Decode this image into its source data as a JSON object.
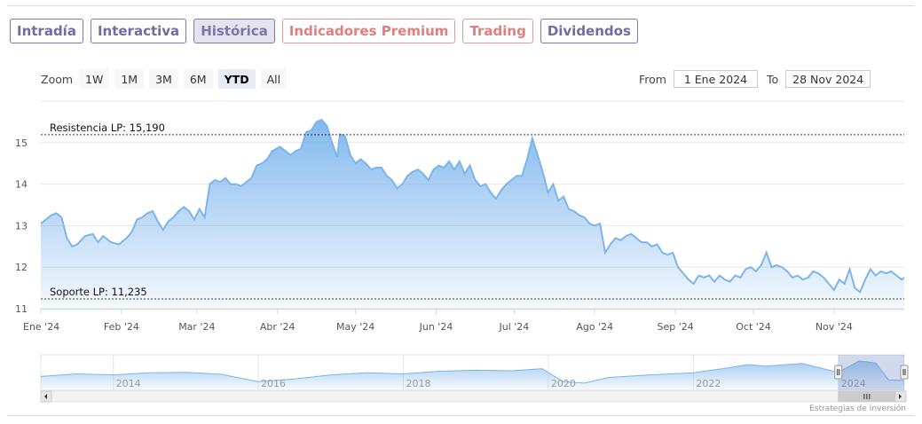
{
  "tabs": [
    {
      "label": "Intradía",
      "style": "normal"
    },
    {
      "label": "Interactiva",
      "style": "normal"
    },
    {
      "label": "Histórica",
      "style": "active"
    },
    {
      "label": "Indicadores Premium",
      "style": "premium"
    },
    {
      "label": "Trading",
      "style": "premium"
    },
    {
      "label": "Dividendos",
      "style": "normal"
    }
  ],
  "zoom": {
    "label": "Zoom",
    "buttons": [
      "1W",
      "1M",
      "3M",
      "6M",
      "YTD",
      "All"
    ],
    "selected": "YTD"
  },
  "range": {
    "from_label": "From",
    "from_value": "1 Ene 2024",
    "to_label": "To",
    "to_value": "28 Nov 2024"
  },
  "credit": "Estrategias de Inversión",
  "colors": {
    "line": "#7cb5ec",
    "area_top": "#7cb5ec",
    "area_bottom": "#ffffff",
    "tab_border": "#7b79ad",
    "premium": "#e07f7f"
  },
  "chart_data": {
    "type": "area",
    "title": "",
    "xlabel": "",
    "ylabel": "",
    "ylim": [
      11,
      16
    ],
    "yticks": [
      11,
      12,
      13,
      14,
      15
    ],
    "grid": true,
    "x_range": [
      "2024-01-01",
      "2024-11-28"
    ],
    "x_ticks": [
      {
        "date": "2024-01-01",
        "label": "Ene '24"
      },
      {
        "date": "2024-02-01",
        "label": "Feb '24"
      },
      {
        "date": "2024-03-01",
        "label": "Mar '24"
      },
      {
        "date": "2024-04-01",
        "label": "Abr '24"
      },
      {
        "date": "2024-05-01",
        "label": "May '24"
      },
      {
        "date": "2024-06-01",
        "label": "Jun '24"
      },
      {
        "date": "2024-07-01",
        "label": "Jul '24"
      },
      {
        "date": "2024-08-01",
        "label": "Ago '24"
      },
      {
        "date": "2024-09-01",
        "label": "Sep '24"
      },
      {
        "date": "2024-10-01",
        "label": "Oct '24"
      },
      {
        "date": "2024-11-01",
        "label": "Nov '24"
      }
    ],
    "annotations": [
      {
        "label": "Resistencia LP: 15,190",
        "y": 15.19
      },
      {
        "label": "Soporte LP: 11,235",
        "y": 11.235
      }
    ],
    "series": [
      {
        "points": [
          [
            "2024-01-01",
            13.05
          ],
          [
            "2024-01-03",
            13.15
          ],
          [
            "2024-01-05",
            13.25
          ],
          [
            "2024-01-07",
            13.3
          ],
          [
            "2024-01-09",
            13.2
          ],
          [
            "2024-01-11",
            12.7
          ],
          [
            "2024-01-13",
            12.5
          ],
          [
            "2024-01-15",
            12.55
          ],
          [
            "2024-01-18",
            12.75
          ],
          [
            "2024-01-21",
            12.8
          ],
          [
            "2024-01-23",
            12.6
          ],
          [
            "2024-01-25",
            12.75
          ],
          [
            "2024-01-28",
            12.6
          ],
          [
            "2024-01-31",
            12.55
          ],
          [
            "2024-02-03",
            12.7
          ],
          [
            "2024-02-05",
            12.85
          ],
          [
            "2024-02-07",
            13.15
          ],
          [
            "2024-02-09",
            13.2
          ],
          [
            "2024-02-11",
            13.3
          ],
          [
            "2024-02-13",
            13.35
          ],
          [
            "2024-02-15",
            13.1
          ],
          [
            "2024-02-17",
            12.9
          ],
          [
            "2024-02-19",
            13.1
          ],
          [
            "2024-02-21",
            13.2
          ],
          [
            "2024-02-23",
            13.35
          ],
          [
            "2024-02-25",
            13.45
          ],
          [
            "2024-02-27",
            13.35
          ],
          [
            "2024-02-29",
            13.15
          ],
          [
            "2024-03-02",
            13.4
          ],
          [
            "2024-03-04",
            13.2
          ],
          [
            "2024-03-06",
            14.0
          ],
          [
            "2024-03-08",
            14.1
          ],
          [
            "2024-03-10",
            14.05
          ],
          [
            "2024-03-12",
            14.15
          ],
          [
            "2024-03-14",
            14.0
          ],
          [
            "2024-03-16",
            14.0
          ],
          [
            "2024-03-18",
            13.95
          ],
          [
            "2024-03-20",
            14.05
          ],
          [
            "2024-03-22",
            14.15
          ],
          [
            "2024-03-24",
            14.45
          ],
          [
            "2024-03-26",
            14.5
          ],
          [
            "2024-03-28",
            14.6
          ],
          [
            "2024-03-30",
            14.8
          ],
          [
            "2024-04-02",
            14.9
          ],
          [
            "2024-04-04",
            14.8
          ],
          [
            "2024-04-06",
            14.7
          ],
          [
            "2024-04-08",
            14.8
          ],
          [
            "2024-04-10",
            14.85
          ],
          [
            "2024-04-12",
            15.25
          ],
          [
            "2024-04-14",
            15.3
          ],
          [
            "2024-04-16",
            15.5
          ],
          [
            "2024-04-18",
            15.55
          ],
          [
            "2024-04-20",
            15.4
          ],
          [
            "2024-04-22",
            15.0
          ],
          [
            "2024-04-24",
            14.65
          ],
          [
            "2024-04-25",
            15.2
          ],
          [
            "2024-04-27",
            15.15
          ],
          [
            "2024-04-29",
            14.7
          ],
          [
            "2024-05-01",
            14.5
          ],
          [
            "2024-05-03",
            14.6
          ],
          [
            "2024-05-05",
            14.5
          ],
          [
            "2024-05-07",
            14.35
          ],
          [
            "2024-05-09",
            14.4
          ],
          [
            "2024-05-11",
            14.4
          ],
          [
            "2024-05-13",
            14.2
          ],
          [
            "2024-05-15",
            14.1
          ],
          [
            "2024-05-17",
            13.9
          ],
          [
            "2024-05-19",
            14.0
          ],
          [
            "2024-05-21",
            14.2
          ],
          [
            "2024-05-23",
            14.3
          ],
          [
            "2024-05-25",
            14.35
          ],
          [
            "2024-05-27",
            14.25
          ],
          [
            "2024-05-29",
            14.1
          ],
          [
            "2024-05-31",
            14.35
          ],
          [
            "2024-06-02",
            14.45
          ],
          [
            "2024-06-04",
            14.4
          ],
          [
            "2024-06-06",
            14.55
          ],
          [
            "2024-06-08",
            14.35
          ],
          [
            "2024-06-10",
            14.55
          ],
          [
            "2024-06-12",
            14.25
          ],
          [
            "2024-06-14",
            14.45
          ],
          [
            "2024-06-16",
            14.1
          ],
          [
            "2024-06-18",
            13.95
          ],
          [
            "2024-06-20",
            14.0
          ],
          [
            "2024-06-22",
            13.8
          ],
          [
            "2024-06-24",
            13.65
          ],
          [
            "2024-06-26",
            13.85
          ],
          [
            "2024-06-28",
            14.0
          ],
          [
            "2024-06-30",
            14.1
          ],
          [
            "2024-07-02",
            14.2
          ],
          [
            "2024-07-04",
            14.2
          ],
          [
            "2024-07-06",
            14.6
          ],
          [
            "2024-07-08",
            15.1
          ],
          [
            "2024-07-10",
            14.7
          ],
          [
            "2024-07-12",
            14.3
          ],
          [
            "2024-07-14",
            13.8
          ],
          [
            "2024-07-16",
            14.0
          ],
          [
            "2024-07-18",
            13.6
          ],
          [
            "2024-07-20",
            13.7
          ],
          [
            "2024-07-22",
            13.4
          ],
          [
            "2024-07-24",
            13.35
          ],
          [
            "2024-07-26",
            13.25
          ],
          [
            "2024-07-28",
            13.2
          ],
          [
            "2024-07-30",
            13.05
          ],
          [
            "2024-08-01",
            13.0
          ],
          [
            "2024-08-03",
            13.05
          ],
          [
            "2024-08-05",
            12.35
          ],
          [
            "2024-08-07",
            12.55
          ],
          [
            "2024-08-09",
            12.7
          ],
          [
            "2024-08-11",
            12.65
          ],
          [
            "2024-08-13",
            12.75
          ],
          [
            "2024-08-15",
            12.8
          ],
          [
            "2024-08-17",
            12.7
          ],
          [
            "2024-08-19",
            12.6
          ],
          [
            "2024-08-21",
            12.6
          ],
          [
            "2024-08-23",
            12.5
          ],
          [
            "2024-08-25",
            12.55
          ],
          [
            "2024-08-27",
            12.35
          ],
          [
            "2024-08-29",
            12.3
          ],
          [
            "2024-08-31",
            12.35
          ],
          [
            "2024-09-02",
            12.0
          ],
          [
            "2024-09-04",
            11.85
          ],
          [
            "2024-09-06",
            11.7
          ],
          [
            "2024-09-08",
            11.6
          ],
          [
            "2024-09-10",
            11.8
          ],
          [
            "2024-09-12",
            11.75
          ],
          [
            "2024-09-14",
            11.8
          ],
          [
            "2024-09-16",
            11.65
          ],
          [
            "2024-09-18",
            11.8
          ],
          [
            "2024-09-20",
            11.7
          ],
          [
            "2024-09-22",
            11.65
          ],
          [
            "2024-09-24",
            11.8
          ],
          [
            "2024-09-26",
            11.75
          ],
          [
            "2024-09-28",
            11.95
          ],
          [
            "2024-09-30",
            12.0
          ],
          [
            "2024-10-02",
            11.9
          ],
          [
            "2024-10-04",
            12.05
          ],
          [
            "2024-10-06",
            12.35
          ],
          [
            "2024-10-08",
            12.0
          ],
          [
            "2024-10-10",
            12.05
          ],
          [
            "2024-10-12",
            12.0
          ],
          [
            "2024-10-14",
            11.9
          ],
          [
            "2024-10-16",
            11.75
          ],
          [
            "2024-10-18",
            11.8
          ],
          [
            "2024-10-20",
            11.7
          ],
          [
            "2024-10-22",
            11.75
          ],
          [
            "2024-10-24",
            11.9
          ],
          [
            "2024-10-26",
            11.85
          ],
          [
            "2024-10-28",
            11.75
          ],
          [
            "2024-10-30",
            11.6
          ],
          [
            "2024-11-01",
            11.45
          ],
          [
            "2024-11-03",
            11.7
          ],
          [
            "2024-11-05",
            11.6
          ],
          [
            "2024-11-07",
            11.95
          ],
          [
            "2024-11-09",
            11.5
          ],
          [
            "2024-11-11",
            11.4
          ],
          [
            "2024-11-13",
            11.7
          ],
          [
            "2024-11-15",
            11.95
          ],
          [
            "2024-11-17",
            11.8
          ],
          [
            "2024-11-19",
            11.9
          ],
          [
            "2024-11-21",
            11.85
          ],
          [
            "2024-11-23",
            11.9
          ],
          [
            "2024-11-25",
            11.8
          ],
          [
            "2024-11-27",
            11.7
          ],
          [
            "2024-11-28",
            11.75
          ]
        ]
      }
    ],
    "navigator": {
      "x_range": [
        "2013-01-01",
        "2024-11-28"
      ],
      "year_labels": [
        "2014",
        "2016",
        "2018",
        "2020",
        "2022",
        "2024"
      ],
      "selection": [
        "2024-01-01",
        "2024-11-28"
      ],
      "points": [
        [
          "2013-01-01",
          12.5
        ],
        [
          "2013-07-01",
          13.0
        ],
        [
          "2014-01-01",
          12.8
        ],
        [
          "2014-07-01",
          13.2
        ],
        [
          "2015-01-01",
          13.3
        ],
        [
          "2015-07-01",
          12.9
        ],
        [
          "2016-01-01",
          11.5
        ],
        [
          "2016-07-01",
          12.0
        ],
        [
          "2017-01-01",
          12.8
        ],
        [
          "2017-07-01",
          13.2
        ],
        [
          "2018-01-01",
          13.0
        ],
        [
          "2018-07-01",
          13.5
        ],
        [
          "2019-01-01",
          13.7
        ],
        [
          "2019-07-01",
          13.6
        ],
        [
          "2019-12-01",
          14.0
        ],
        [
          "2020-03-15",
          11.5
        ],
        [
          "2020-07-01",
          11.2
        ],
        [
          "2020-11-01",
          12.3
        ],
        [
          "2021-06-01",
          12.8
        ],
        [
          "2022-01-01",
          13.2
        ],
        [
          "2022-07-01",
          14.2
        ],
        [
          "2022-10-01",
          14.8
        ],
        [
          "2023-01-01",
          14.5
        ],
        [
          "2023-07-01",
          15.0
        ],
        [
          "2024-01-01",
          13.3
        ],
        [
          "2024-04-15",
          15.5
        ],
        [
          "2024-07-08",
          15.1
        ],
        [
          "2024-09-10",
          11.8
        ],
        [
          "2024-11-28",
          11.7
        ]
      ]
    }
  }
}
